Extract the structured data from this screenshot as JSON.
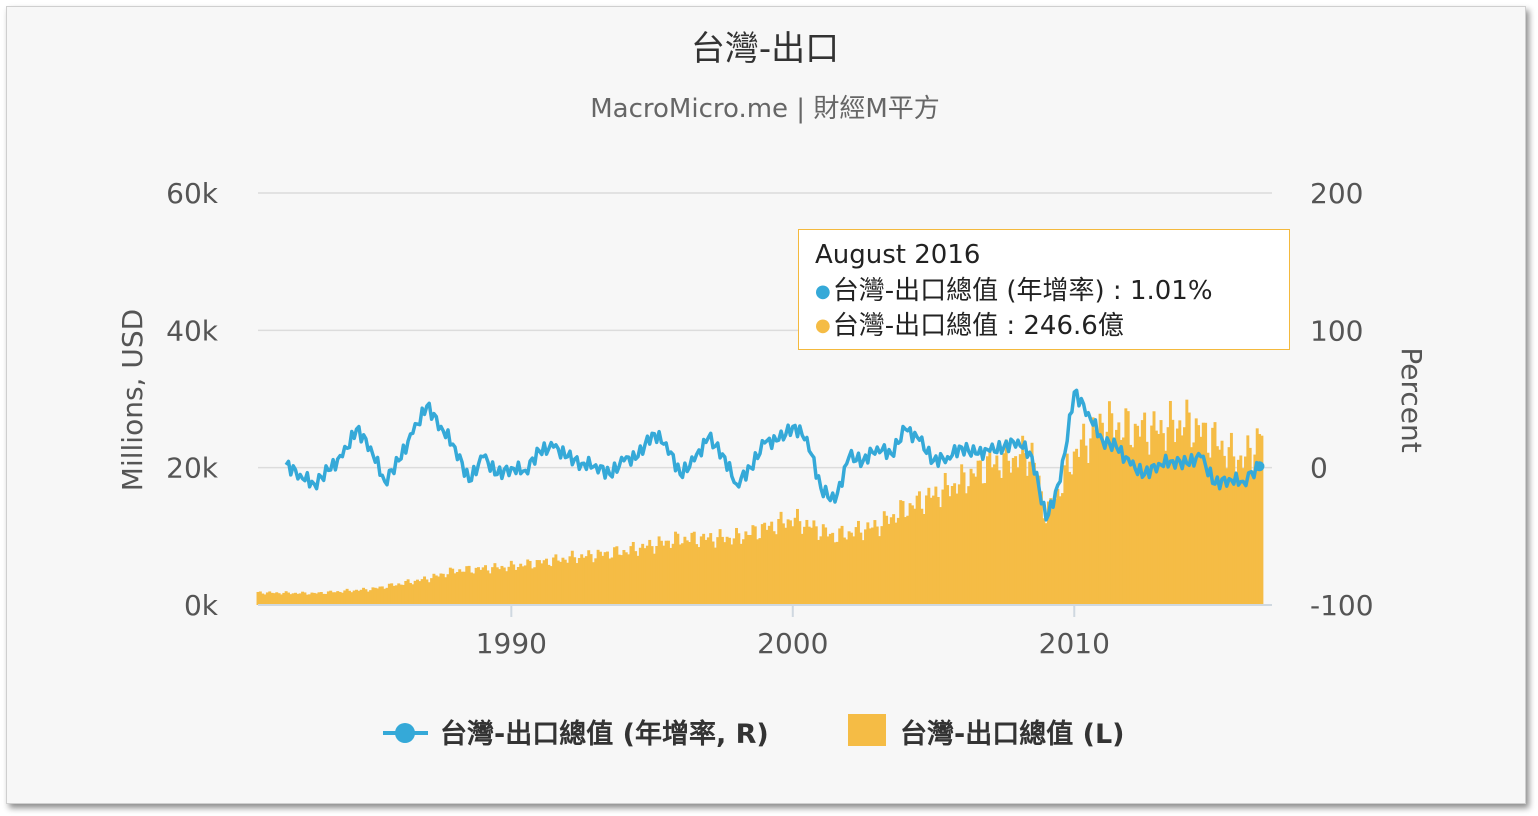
{
  "title": "台灣-出口",
  "subtitle": "MacroMicro.me | 財經M平方",
  "colors": {
    "line": "#35a9d8",
    "bar": "#f5bc45",
    "grid": "#dcdcdc",
    "axis_text": "#555555",
    "tooltip_border": "#f4b93d"
  },
  "tooltip": {
    "title": "August 2016",
    "rows": [
      {
        "dot_color": "#35a9d8",
        "label": "台灣-出口總值 (年增率) : 1.01%"
      },
      {
        "dot_color": "#f5bc45",
        "label": "台灣-出口總值 : 246.6億"
      }
    ]
  },
  "chart_data": {
    "type": "bar",
    "title": "台灣-出口",
    "subtitle": "MacroMicro.me | 財經M平方",
    "ylabel_left": "Millions, USD",
    "ylabel_right": "Percent",
    "y_left_ticks": [
      "0k",
      "20k",
      "40k",
      "60k"
    ],
    "y_left_range": [
      0,
      60000
    ],
    "y_right_ticks": [
      "-100",
      "0",
      "100",
      "200"
    ],
    "y_right_range": [
      -100,
      200
    ],
    "x_ticks": [
      "1990",
      "2000",
      "2010"
    ],
    "x_range": [
      1981.0,
      2016.67
    ],
    "grid": true,
    "legend_position": "bottom-center",
    "series": [
      {
        "name": "台灣-出口總值 (年增率, R)",
        "type": "line",
        "axis": "right",
        "x": [
          1982.0,
          1982.5,
          1983.0,
          1983.5,
          1984.0,
          1984.5,
          1985.0,
          1985.5,
          1986.0,
          1986.5,
          1987.0,
          1987.5,
          1988.0,
          1988.5,
          1989.0,
          1989.5,
          1990.0,
          1990.5,
          1991.0,
          1991.5,
          1992.0,
          1992.5,
          1993.0,
          1993.5,
          1994.0,
          1994.5,
          1995.0,
          1995.5,
          1996.0,
          1996.5,
          1997.0,
          1997.5,
          1998.0,
          1998.5,
          1999.0,
          1999.5,
          2000.0,
          2000.5,
          2001.0,
          2001.5,
          2002.0,
          2002.5,
          2003.0,
          2003.5,
          2004.0,
          2004.5,
          2005.0,
          2005.5,
          2006.0,
          2006.5,
          2007.0,
          2007.5,
          2008.0,
          2008.5,
          2009.0,
          2009.5,
          2010.0,
          2010.5,
          2011.0,
          2011.5,
          2012.0,
          2012.5,
          2013.0,
          2013.5,
          2014.0,
          2014.5,
          2015.0,
          2015.5,
          2016.0,
          2016.58
        ],
        "values": [
          2,
          -5,
          -12,
          -2,
          8,
          28,
          15,
          -10,
          5,
          25,
          45,
          30,
          15,
          -10,
          8,
          -5,
          0,
          -2,
          12,
          15,
          8,
          3,
          2,
          -5,
          5,
          8,
          25,
          18,
          -5,
          5,
          22,
          10,
          -12,
          0,
          18,
          20,
          30,
          22,
          -15,
          -25,
          8,
          5,
          15,
          10,
          28,
          20,
          5,
          8,
          15,
          10,
          12,
          15,
          20,
          8,
          -38,
          -10,
          55,
          40,
          20,
          15,
          2,
          -5,
          3,
          5,
          3,
          8,
          -12,
          -8,
          -10,
          1.01
        ]
      },
      {
        "name": "台灣-出口總值 (L)",
        "type": "bar",
        "axis": "left",
        "x": [
          1981.0,
          1983.0,
          1985.0,
          1987.0,
          1988.0,
          1990.0,
          1992.0,
          1994.0,
          1996.0,
          1998.0,
          2000.0,
          2001.5,
          2003.0,
          2004.0,
          2005.0,
          2006.0,
          2007.0,
          2008.5,
          2009.0,
          2009.5,
          2010.0,
          2011.0,
          2012.0,
          2013.0,
          2014.0,
          2015.0,
          2015.5,
          2016.0,
          2016.67
        ],
        "values": [
          1800,
          1700,
          2300,
          3800,
          5000,
          5600,
          6800,
          7800,
          9600,
          9800,
          12500,
          10000,
          11500,
          14000,
          16000,
          18000,
          20500,
          22000,
          13000,
          17000,
          22000,
          26500,
          25500,
          25500,
          26500,
          24000,
          22000,
          21000,
          24660
        ]
      }
    ]
  },
  "legend": [
    {
      "label": "台灣-出口總值 (年增率, R)",
      "color": "#35a9d8",
      "kind": "line-marker"
    },
    {
      "label": "台灣-出口總值 (L)",
      "color": "#f5bc45",
      "kind": "box"
    }
  ]
}
